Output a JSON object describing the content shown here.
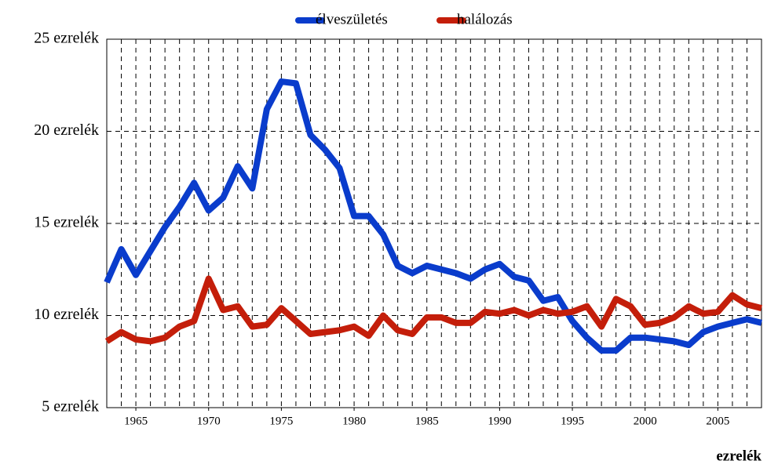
{
  "chart_data": {
    "type": "line",
    "x_label": "ezrelék",
    "x": [
      1963,
      1964,
      1965,
      1966,
      1967,
      1968,
      1969,
      1970,
      1971,
      1972,
      1973,
      1974,
      1975,
      1976,
      1977,
      1978,
      1979,
      1980,
      1981,
      1982,
      1983,
      1984,
      1985,
      1986,
      1987,
      1988,
      1989,
      1990,
      1991,
      1992,
      1993,
      1994,
      1995,
      1996,
      1997,
      1998,
      1999,
      2000,
      2001,
      2002,
      2003,
      2004,
      2005,
      2006,
      2007,
      2008
    ],
    "series": [
      {
        "name": "élveszületés",
        "color": "#0a3ccc",
        "values": [
          11.8,
          13.6,
          12.2,
          13.5,
          14.8,
          15.9,
          17.2,
          15.7,
          16.4,
          18.1,
          16.9,
          21.2,
          22.7,
          22.6,
          19.8,
          19.0,
          18.0,
          15.4,
          15.4,
          14.4,
          12.7,
          12.3,
          12.7,
          12.5,
          12.3,
          12.0,
          12.5,
          12.8,
          12.1,
          11.9,
          10.8,
          11.0,
          9.7,
          8.8,
          8.1,
          8.1,
          8.8,
          8.8,
          8.7,
          8.6,
          8.4,
          9.1,
          9.4,
          9.6,
          9.8,
          9.6
        ]
      },
      {
        "name": "halálozás",
        "color": "#c41e0a",
        "values": [
          8.6,
          9.1,
          8.7,
          8.6,
          8.8,
          9.4,
          9.7,
          12.0,
          10.3,
          10.5,
          9.4,
          9.5,
          10.4,
          9.7,
          9.0,
          9.1,
          9.2,
          9.4,
          8.9,
          10.0,
          9.2,
          9.0,
          9.9,
          9.9,
          9.6,
          9.6,
          10.2,
          10.1,
          10.3,
          10.0,
          10.3,
          10.1,
          10.2,
          10.5,
          9.4,
          10.9,
          10.5,
          9.5,
          9.6,
          9.9,
          10.5,
          10.1,
          10.2,
          11.1,
          10.6,
          10.4
        ]
      }
    ],
    "xlim": [
      1963,
      2008
    ],
    "xticks": [
      1965,
      1970,
      1975,
      1980,
      1985,
      1990,
      1995,
      2000,
      2005
    ],
    "xgrid": [
      1964,
      1965,
      1966,
      1967,
      1968,
      1969,
      1970,
      1971,
      1972,
      1973,
      1974,
      1975,
      1976,
      1977,
      1978,
      1979,
      1980,
      1981,
      1982,
      1983,
      1984,
      1985,
      1986,
      1987,
      1988,
      1989,
      1990,
      1991,
      1992,
      1993,
      1994,
      1995,
      1996,
      1997,
      1998,
      1999,
      2000,
      2001,
      2002,
      2003,
      2004,
      2005,
      2006,
      2007
    ],
    "ylim": [
      5,
      25
    ],
    "yticks": [
      {
        "value": 5,
        "label": "5 ezrelék"
      },
      {
        "value": 10,
        "label": "10 ezrelék"
      },
      {
        "value": 15,
        "label": "15 ezrelék"
      },
      {
        "value": 20,
        "label": "20 ezrelék"
      },
      {
        "value": 25,
        "label": "25 ezrelék"
      }
    ],
    "grid": true,
    "legend": "top"
  }
}
